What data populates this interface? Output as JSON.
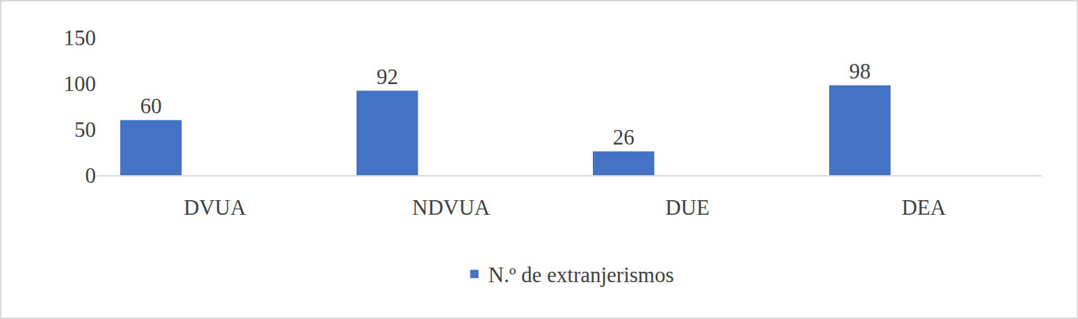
{
  "chart_data": {
    "type": "bar",
    "categories": [
      "DVUA",
      "NDVUA",
      "DUE",
      "DEA"
    ],
    "series": [
      {
        "name": "N.º de extranjerismos",
        "color": "#4472c4",
        "values": [
          60,
          92,
          26,
          98
        ]
      }
    ],
    "ylim": [
      0,
      150
    ],
    "yticks": [
      0,
      50,
      100,
      150
    ],
    "grid": false,
    "legend": "bottom",
    "data_labels": true
  }
}
